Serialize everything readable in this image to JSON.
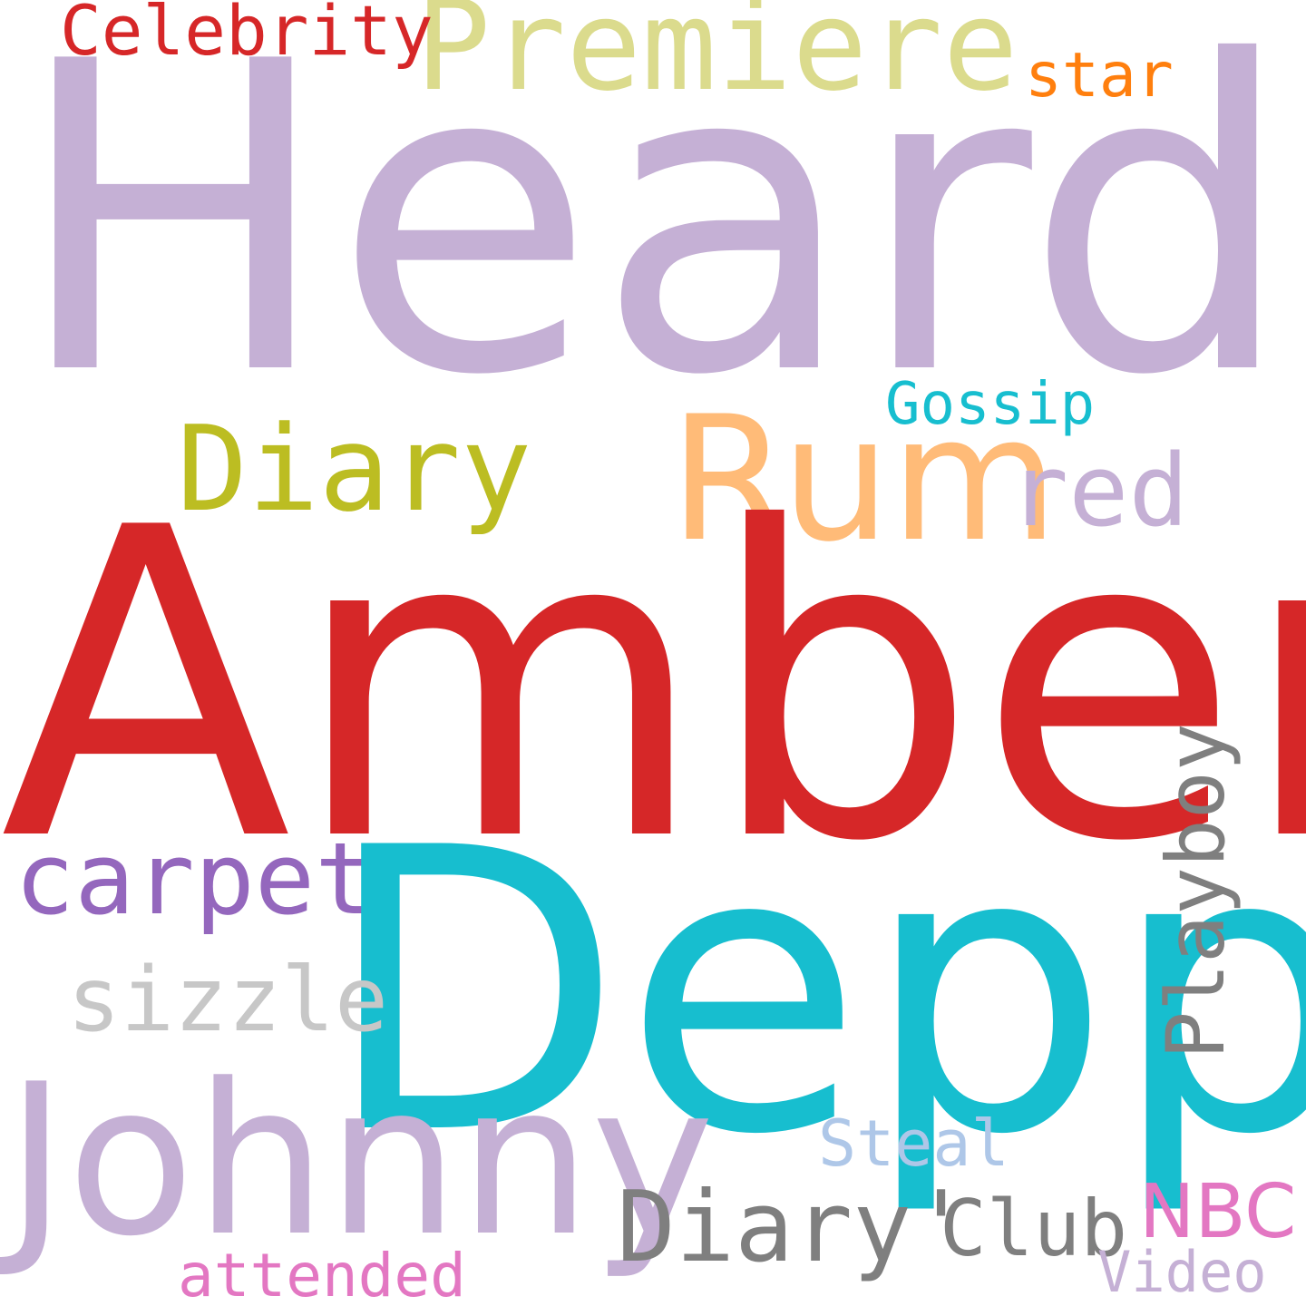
{
  "words": {
    "heard": {
      "text": "Heard",
      "color": "#c5b0d5"
    },
    "amber": {
      "text": "Amber",
      "color": "#d62728"
    },
    "depp": {
      "text": "Depp",
      "color": "#17becf"
    },
    "johnny": {
      "text": "Johnny",
      "color": "#c5b0d5"
    },
    "premiere": {
      "text": "Premiere",
      "color": "#dbdb8d"
    },
    "rum": {
      "text": "Rum",
      "color": "#ffbb78"
    },
    "diary_top": {
      "text": "Diary",
      "color": "#bcbd22"
    },
    "celebrity": {
      "text": "Celebrity",
      "color": "#d62728"
    },
    "star": {
      "text": "star",
      "color": "#ff7f0e"
    },
    "gossip": {
      "text": "Gossip",
      "color": "#17becf"
    },
    "red": {
      "text": "red",
      "color": "#c5b0d5"
    },
    "carpet": {
      "text": "carpet",
      "color": "#9467bd"
    },
    "sizzle": {
      "text": "sizzle",
      "color": "#c7c7c7"
    },
    "playboy": {
      "text": "Playboy",
      "color": "#7f7f7f"
    },
    "steal": {
      "text": "Steal",
      "color": "#aec7e8"
    },
    "diary_bottom": {
      "text": "Diary'",
      "color": "#7f7f7f"
    },
    "club": {
      "text": "Club",
      "color": "#7f7f7f"
    },
    "nbc": {
      "text": "NBC",
      "color": "#e377c2"
    },
    "video": {
      "text": "Video",
      "color": "#c5b0d5"
    },
    "attended": {
      "text": "attended",
      "color": "#e377c2"
    }
  }
}
